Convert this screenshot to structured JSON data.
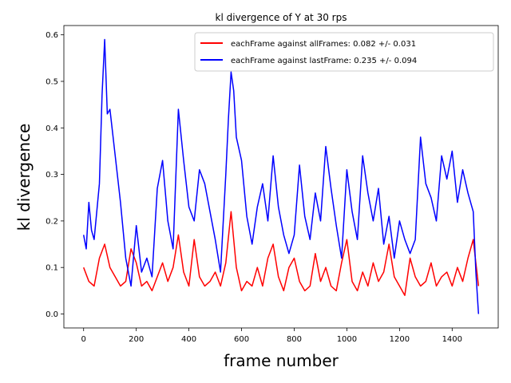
{
  "chart_data": {
    "type": "line",
    "title": "kl divergence of Y at 30 rps",
    "xlabel": "frame number",
    "ylabel": "kl divergence",
    "xlim": [
      -75,
      1575
    ],
    "ylim": [
      -0.03,
      0.62
    ],
    "xticks": [
      0,
      200,
      400,
      600,
      800,
      1000,
      1200,
      1400
    ],
    "yticks": [
      0.0,
      0.1,
      0.2,
      0.3,
      0.4,
      0.5,
      0.6
    ],
    "xtick_labels": [
      "0",
      "200",
      "400",
      "600",
      "800",
      "1000",
      "1200",
      "1400"
    ],
    "ytick_labels": [
      "0.0",
      "0.1",
      "0.2",
      "0.3",
      "0.4",
      "0.5",
      "0.6"
    ],
    "legend_position": "top-right",
    "series": [
      {
        "name": "eachFrame against allFrames: 0.082 +/- 0.031",
        "color": "#ff0000",
        "x": [
          0,
          20,
          40,
          60,
          80,
          100,
          120,
          140,
          160,
          180,
          200,
          220,
          240,
          260,
          280,
          300,
          320,
          340,
          360,
          380,
          400,
          420,
          440,
          460,
          480,
          500,
          520,
          540,
          560,
          580,
          600,
          620,
          640,
          660,
          680,
          700,
          720,
          740,
          760,
          780,
          800,
          820,
          840,
          860,
          880,
          900,
          920,
          940,
          960,
          980,
          1000,
          1020,
          1040,
          1060,
          1080,
          1100,
          1120,
          1140,
          1160,
          1180,
          1200,
          1220,
          1240,
          1260,
          1280,
          1300,
          1320,
          1340,
          1360,
          1380,
          1400,
          1420,
          1440,
          1460,
          1480,
          1500
        ],
        "values": [
          0.1,
          0.07,
          0.06,
          0.12,
          0.15,
          0.1,
          0.08,
          0.06,
          0.07,
          0.14,
          0.11,
          0.06,
          0.07,
          0.05,
          0.08,
          0.11,
          0.07,
          0.1,
          0.17,
          0.09,
          0.06,
          0.16,
          0.08,
          0.06,
          0.07,
          0.09,
          0.06,
          0.11,
          0.22,
          0.1,
          0.05,
          0.07,
          0.06,
          0.1,
          0.06,
          0.12,
          0.15,
          0.08,
          0.05,
          0.1,
          0.12,
          0.07,
          0.05,
          0.06,
          0.13,
          0.07,
          0.1,
          0.06,
          0.05,
          0.11,
          0.16,
          0.07,
          0.05,
          0.09,
          0.06,
          0.11,
          0.07,
          0.09,
          0.15,
          0.08,
          0.06,
          0.04,
          0.12,
          0.08,
          0.06,
          0.07,
          0.11,
          0.06,
          0.08,
          0.09,
          0.06,
          0.1,
          0.07,
          0.12,
          0.16,
          0.06
        ]
      },
      {
        "name": "eachFrame against lastFrame: 0.235 +/- 0.094",
        "color": "#0000ff",
        "x": [
          0,
          10,
          20,
          30,
          40,
          60,
          70,
          80,
          90,
          100,
          120,
          140,
          160,
          180,
          200,
          220,
          240,
          260,
          280,
          300,
          320,
          340,
          360,
          380,
          400,
          420,
          440,
          460,
          480,
          500,
          520,
          540,
          550,
          560,
          570,
          580,
          600,
          620,
          640,
          660,
          680,
          700,
          720,
          740,
          760,
          780,
          800,
          820,
          840,
          860,
          880,
          900,
          920,
          940,
          960,
          980,
          1000,
          1020,
          1040,
          1060,
          1080,
          1100,
          1120,
          1140,
          1160,
          1180,
          1200,
          1220,
          1240,
          1260,
          1280,
          1300,
          1320,
          1340,
          1360,
          1380,
          1400,
          1420,
          1440,
          1460,
          1470,
          1480,
          1490,
          1500
        ],
        "values": [
          0.17,
          0.14,
          0.24,
          0.18,
          0.16,
          0.28,
          0.47,
          0.59,
          0.43,
          0.44,
          0.34,
          0.24,
          0.12,
          0.06,
          0.19,
          0.09,
          0.12,
          0.08,
          0.27,
          0.33,
          0.2,
          0.14,
          0.44,
          0.33,
          0.23,
          0.2,
          0.31,
          0.28,
          0.22,
          0.16,
          0.09,
          0.3,
          0.42,
          0.52,
          0.48,
          0.38,
          0.33,
          0.21,
          0.15,
          0.23,
          0.28,
          0.2,
          0.34,
          0.23,
          0.17,
          0.13,
          0.17,
          0.32,
          0.21,
          0.16,
          0.26,
          0.2,
          0.36,
          0.27,
          0.19,
          0.12,
          0.31,
          0.22,
          0.16,
          0.34,
          0.26,
          0.2,
          0.27,
          0.15,
          0.21,
          0.12,
          0.2,
          0.16,
          0.13,
          0.16,
          0.38,
          0.28,
          0.25,
          0.2,
          0.34,
          0.29,
          0.35,
          0.24,
          0.31,
          0.26,
          0.24,
          0.22,
          0.09,
          0.0
        ]
      }
    ]
  }
}
